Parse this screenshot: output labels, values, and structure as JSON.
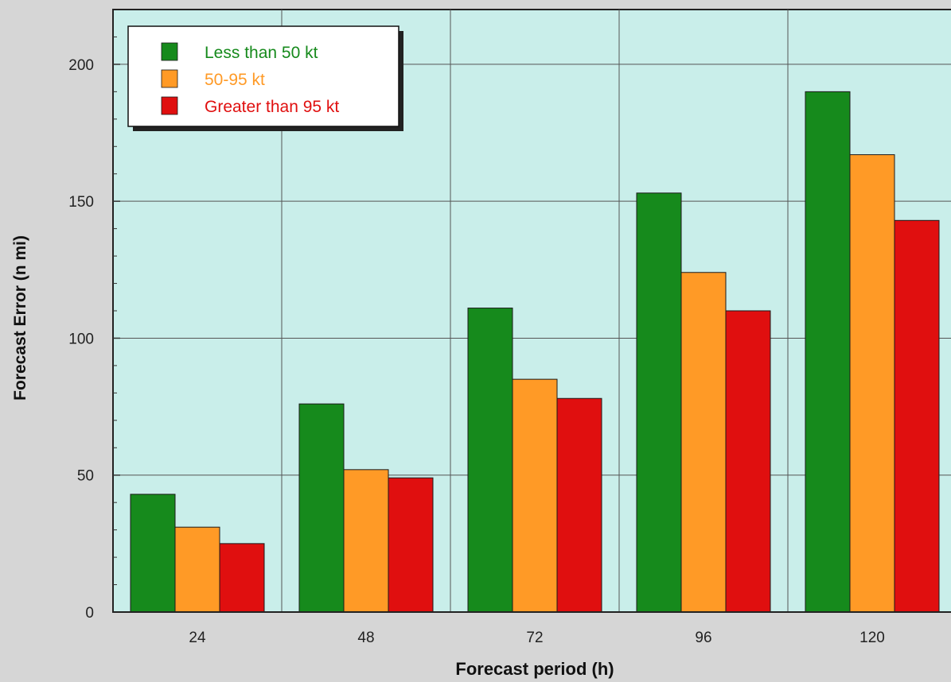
{
  "chart_data": {
    "type": "bar",
    "title": "",
    "xlabel": "Forecast period (h)",
    "ylabel": "Forecast Error (n mi)",
    "categories": [
      "24",
      "48",
      "72",
      "96",
      "120"
    ],
    "series": [
      {
        "name": "Less than 50 kt",
        "color": "#168a1c",
        "values": [
          43,
          76,
          111,
          153,
          190
        ]
      },
      {
        "name": "50-95 kt",
        "color": "#ff9a26",
        "values": [
          31,
          52,
          85,
          124,
          167
        ]
      },
      {
        "name": "Greater than 95 kt",
        "color": "#e00f0f",
        "values": [
          25,
          49,
          78,
          110,
          143
        ]
      }
    ],
    "ylim": [
      0,
      220
    ],
    "yticks": [
      0,
      50,
      100,
      150,
      200
    ],
    "grid": true,
    "legend_position": "top-left",
    "colors": {
      "plot_background": "#c9eeea",
      "page_background": "#d6d6d6"
    }
  }
}
